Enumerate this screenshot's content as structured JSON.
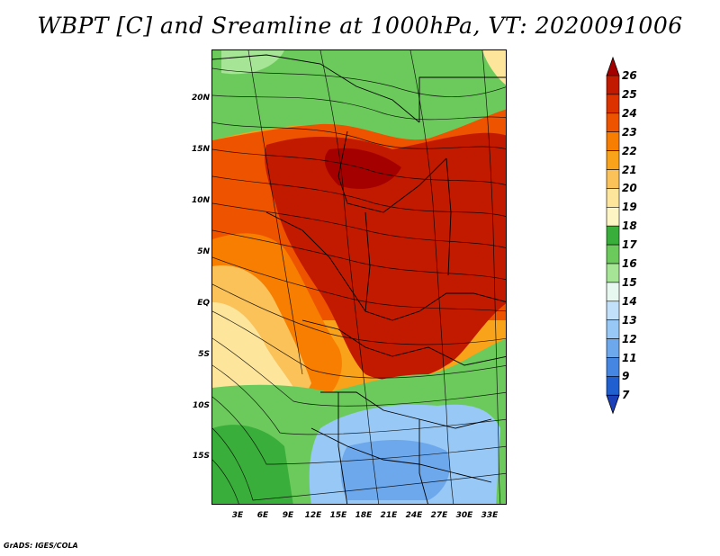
{
  "title": "WBPT [C] and Sreamline at 1000hPa, VT: 2020091006",
  "footer": "GrADS: IGES/COLA",
  "lat_labels": [
    "20N",
    "15N",
    "10N",
    "5N",
    "EQ",
    "5S",
    "10S",
    "15S"
  ],
  "lon_labels": [
    "3E",
    "6E",
    "9E",
    "12E",
    "15E",
    "18E",
    "21E",
    "24E",
    "27E",
    "30E",
    "33E"
  ],
  "colorbar": {
    "labels": [
      "26",
      "25",
      "24",
      "23",
      "22",
      "21",
      "20",
      "19",
      "18",
      "17",
      "16",
      "15",
      "14",
      "13",
      "12",
      "11",
      "9",
      "7"
    ],
    "colors": [
      "#a50000",
      "#c21a00",
      "#dc3200",
      "#ee5300",
      "#f77e00",
      "#f9a31a",
      "#fbc25a",
      "#fde59c",
      "#fef5c4",
      "#3aae3a",
      "#6cca5c",
      "#a6e596",
      "#e6f8f0",
      "#c2e0fa",
      "#98c8f5",
      "#6ea8ec",
      "#4486e2",
      "#1f5fd0",
      "#1b3fb8"
    ]
  },
  "regions": [
    {
      "name": "north-green-region",
      "color": "#6cca5c"
    },
    {
      "name": "orange-hot-band",
      "color": "#ee5300"
    },
    {
      "name": "red-hot-core",
      "color": "#c21a00"
    },
    {
      "name": "southwest-orange",
      "color": "#f9a31a"
    },
    {
      "name": "southwest-yellow",
      "color": "#fde59c"
    },
    {
      "name": "south-green-region",
      "color": "#a6e596"
    },
    {
      "name": "southeast-blue-region",
      "color": "#98c8f5"
    }
  ]
}
